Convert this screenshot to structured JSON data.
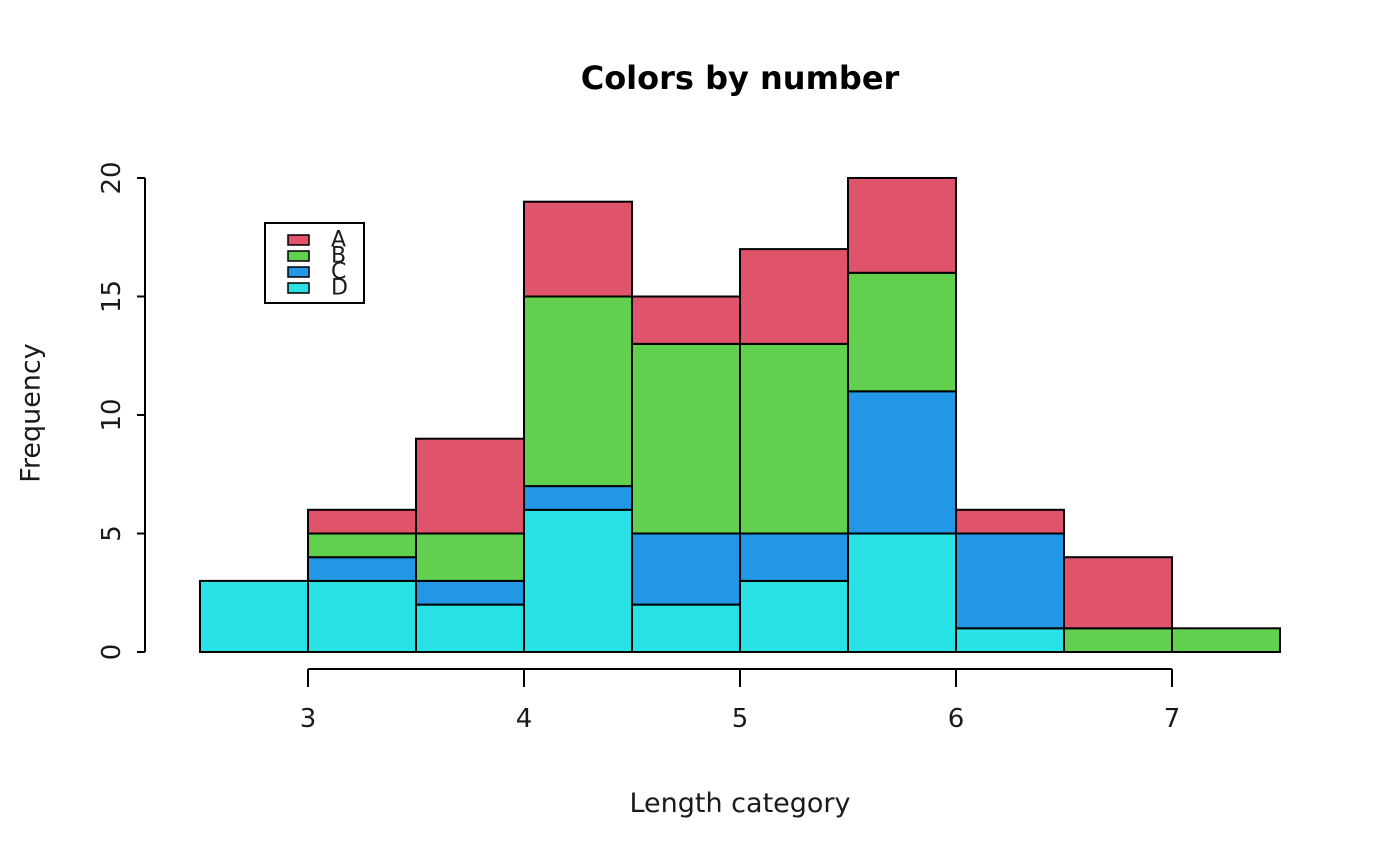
{
  "chart_data": {
    "type": "bar",
    "subtype": "stacked-histogram",
    "title": "Colors by number",
    "xlabel": "Length category",
    "ylabel": "Frequency",
    "background": "#FFFFFF",
    "bar_border_color": "#000000",
    "bin_edges": [
      2.5,
      3,
      3.5,
      4,
      4.5,
      5,
      5.5,
      6,
      6.5,
      7,
      7.5
    ],
    "x_ticks": [
      "3",
      "4",
      "5",
      "6",
      "7"
    ],
    "y_ticks": [
      "0",
      "5",
      "10",
      "15",
      "20"
    ],
    "xlim": [
      2.5,
      7.5
    ],
    "ylim": [
      0,
      20
    ],
    "grid": false,
    "stack_order_bottom_to_top": [
      "D",
      "C",
      "B",
      "A"
    ],
    "series": [
      {
        "name": "A",
        "color": "#DF536B",
        "values": [
          0,
          1,
          4,
          4,
          2,
          4,
          4,
          1,
          3,
          0
        ]
      },
      {
        "name": "B",
        "color": "#61D04F",
        "values": [
          0,
          1,
          2,
          8,
          8,
          8,
          5,
          0,
          1,
          1
        ]
      },
      {
        "name": "C",
        "color": "#2297E6",
        "values": [
          0,
          1,
          1,
          1,
          3,
          2,
          6,
          4,
          0,
          0
        ]
      },
      {
        "name": "D",
        "color": "#28E2E5",
        "values": [
          3,
          3,
          2,
          6,
          2,
          3,
          5,
          1,
          0,
          0
        ]
      }
    ],
    "totals": [
      3,
      6,
      9,
      19,
      15,
      17,
      20,
      6,
      4,
      1
    ],
    "legend": {
      "position": "top-left",
      "labels": [
        "A",
        "B",
        "C",
        "D"
      ]
    }
  }
}
